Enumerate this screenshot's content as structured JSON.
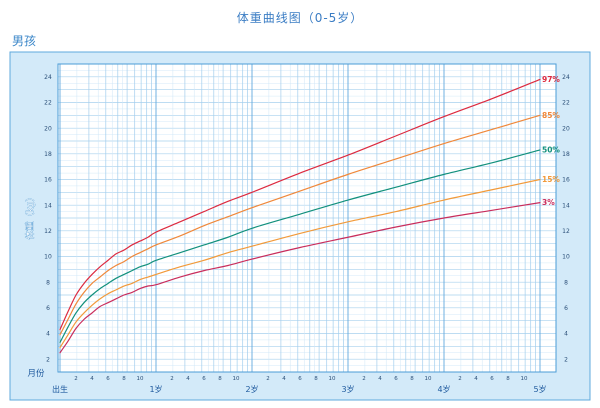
{
  "chart_data": {
    "type": "line",
    "title": "体重曲线图（0-5岁）",
    "subtitle": "男孩",
    "xlabel": "月份",
    "ylabel": "体重（kg）",
    "xlim": [
      0,
      60
    ],
    "ylim": [
      1,
      25
    ],
    "grid": true,
    "y_ticks": [
      2,
      4,
      6,
      8,
      10,
      12,
      14,
      16,
      18,
      20,
      22,
      24
    ],
    "x_major_ticks": [
      0,
      12,
      24,
      36,
      48,
      60
    ],
    "x_major_tick_labels": [
      "出生",
      "1岁",
      "2岁",
      "3岁",
      "4岁",
      "5岁"
    ],
    "x_minor_ticks": [
      2,
      4,
      6,
      8,
      10
    ],
    "x": [
      0,
      1,
      2,
      3,
      4,
      5,
      6,
      7,
      8,
      9,
      10,
      11,
      12,
      15,
      18,
      21,
      24,
      30,
      36,
      42,
      48,
      54,
      60
    ],
    "series": [
      {
        "name": "97%",
        "color": "#dd2a3f",
        "values": [
          4.3,
          5.7,
          7.0,
          7.9,
          8.6,
          9.2,
          9.7,
          10.2,
          10.5,
          10.9,
          11.2,
          11.5,
          11.9,
          12.7,
          13.5,
          14.3,
          15.0,
          16.5,
          17.9,
          19.4,
          20.9,
          22.3,
          23.8
        ]
      },
      {
        "name": "85%",
        "color": "#f0883a",
        "values": [
          3.9,
          5.1,
          6.3,
          7.2,
          7.9,
          8.4,
          8.9,
          9.3,
          9.6,
          10.0,
          10.3,
          10.6,
          10.9,
          11.6,
          12.4,
          13.1,
          13.8,
          15.1,
          16.4,
          17.6,
          18.8,
          19.9,
          21.0
        ]
      },
      {
        "name": "50%",
        "color": "#12907c",
        "values": [
          3.3,
          4.5,
          5.6,
          6.4,
          7.0,
          7.5,
          7.9,
          8.3,
          8.6,
          8.9,
          9.2,
          9.4,
          9.7,
          10.3,
          10.9,
          11.5,
          12.2,
          13.3,
          14.4,
          15.4,
          16.4,
          17.3,
          18.3
        ]
      },
      {
        "name": "15%",
        "color": "#f29a3a",
        "values": [
          2.9,
          3.9,
          4.9,
          5.6,
          6.2,
          6.7,
          7.1,
          7.4,
          7.7,
          7.9,
          8.2,
          8.4,
          8.6,
          9.2,
          9.7,
          10.3,
          10.8,
          11.8,
          12.7,
          13.5,
          14.4,
          15.2,
          16.0
        ]
      },
      {
        "name": "3%",
        "color": "#c92d5c",
        "values": [
          2.5,
          3.4,
          4.4,
          5.1,
          5.6,
          6.1,
          6.4,
          6.7,
          7.0,
          7.2,
          7.5,
          7.7,
          7.8,
          8.4,
          8.9,
          9.3,
          9.8,
          10.7,
          11.5,
          12.3,
          13.0,
          13.6,
          14.2
        ]
      }
    ]
  }
}
